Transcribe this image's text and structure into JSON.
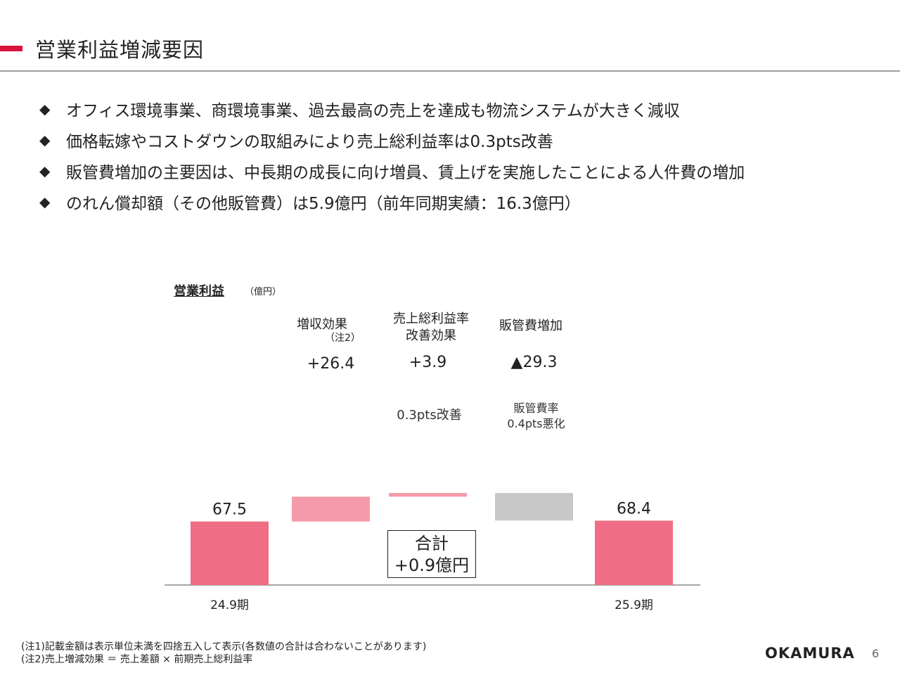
{
  "header": {
    "title": "営業利益増減要因"
  },
  "bullets": [
    "オフィス環境事業、商環境事業、過去最高の売上を達成も物流システムが大きく減収",
    "価格転嫁やコストダウンの取組みにより売上総利益率は0.3pts改善",
    "販管費増加の主要因は、中長期の成長に向け増員、賃上げを実施したことによる人件費の増加",
    "のれん償却額（その他販管費）は5.9億円（前年同期実績：16.3億円）"
  ],
  "bullet_symbol": "◆",
  "chart_data": {
    "type": "waterfall",
    "title": "営業利益",
    "unit": "（億円）",
    "baseline_value": 0,
    "steps": [
      {
        "id": "start",
        "kind": "total",
        "value": 67.5,
        "value_label": "67.5",
        "axis_label": "24.9期",
        "color": "#f06e85"
      },
      {
        "id": "sales",
        "kind": "delta",
        "value": 26.4,
        "value_label": "+26.4",
        "category_label": "増収効果",
        "category_note": "（注2）",
        "color": "#f49aaa"
      },
      {
        "id": "margin",
        "kind": "delta",
        "value": 3.9,
        "value_label": "+3.9",
        "category_label_line1": "売上総利益率",
        "category_label_line2": "改善効果",
        "inner_note": "0.3pts改善",
        "color": "#f49aaa"
      },
      {
        "id": "sga",
        "kind": "delta",
        "value": -29.3,
        "value_label": "▲29.3",
        "category_label": "販管費増加",
        "inner_note_line1": "販管費率",
        "inner_note_line2": "0.4pts悪化",
        "color": "#c8c8c8"
      },
      {
        "id": "end",
        "kind": "total",
        "value": 68.4,
        "value_label": "68.4",
        "axis_label": "25.9期",
        "color": "#f06e85"
      }
    ],
    "total_change": {
      "line1": "合計",
      "line2": "+0.9億円"
    }
  },
  "footnotes": [
    "(注1)記載金額は表示単位未満を四捨五入して表示(各数値の合計は合わないことがあります)",
    "(注2)売上増減効果 ＝ 売上差額 × 前期売上総利益率"
  ],
  "logo_text": "OKAMURA",
  "page_number": "6"
}
